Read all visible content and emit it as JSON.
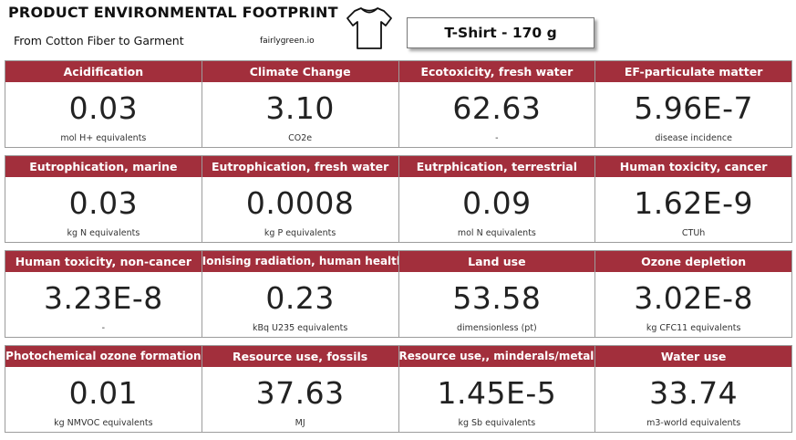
{
  "header": {
    "title": "PRODUCT ENVIRONMENTAL FOOTPRINT",
    "subtitle": "From Cotton Fiber to Garment",
    "site": "fairlygreen.io",
    "product_icon": "t-shirt-icon",
    "product_label": "T-Shirt - 170 g"
  },
  "colors": {
    "card_header": "#a22f3c",
    "text": "#222222"
  },
  "rows": [
    {
      "cards": [
        {
          "title": "Acidification",
          "value": "0.03",
          "unit": "mol H+ equivalents"
        },
        {
          "title": "Climate Change",
          "value": "3.10",
          "unit": "CO2e"
        },
        {
          "title": "Ecotoxicity, fresh water",
          "value": "62.63",
          "unit": "-"
        },
        {
          "title": "EF-particulate matter",
          "value": "5.96E-7",
          "unit": "disease incidence"
        }
      ]
    },
    {
      "cards": [
        {
          "title": "Eutrophication, marine",
          "value": "0.03",
          "unit": "kg N equivalents"
        },
        {
          "title": "Eutrophication, fresh water",
          "value": "0.0008",
          "unit": "kg P equivalents"
        },
        {
          "title": "Eutrphication, terrestrial",
          "value": "0.09",
          "unit": "mol N equivalents"
        },
        {
          "title": "Human toxicity, cancer",
          "value": "1.62E-9",
          "unit": "CTUh"
        }
      ]
    },
    {
      "cards": [
        {
          "title": "Human toxicity, non-cancer",
          "value": "3.23E-8",
          "unit": "-"
        },
        {
          "title": "Ionising radiation, human health",
          "value": "0.23",
          "unit": "kBq U235 equivalents"
        },
        {
          "title": "Land use",
          "value": "53.58",
          "unit": "dimensionless (pt)"
        },
        {
          "title": "Ozone depletion",
          "value": "3.02E-8",
          "unit": "kg CFC11 equivalents"
        }
      ]
    },
    {
      "cards": [
        {
          "title": "Photochemical ozone formation",
          "value": "0.01",
          "unit": "kg NMVOC equivalents"
        },
        {
          "title": "Resource use, fossils",
          "value": "37.63",
          "unit": "MJ"
        },
        {
          "title": "Resource use,, minderals/metals",
          "value": "1.45E-5",
          "unit": "kg Sb equivalents"
        },
        {
          "title": "Water use",
          "value": "33.74",
          "unit": "m3-world equivalents"
        }
      ]
    }
  ]
}
